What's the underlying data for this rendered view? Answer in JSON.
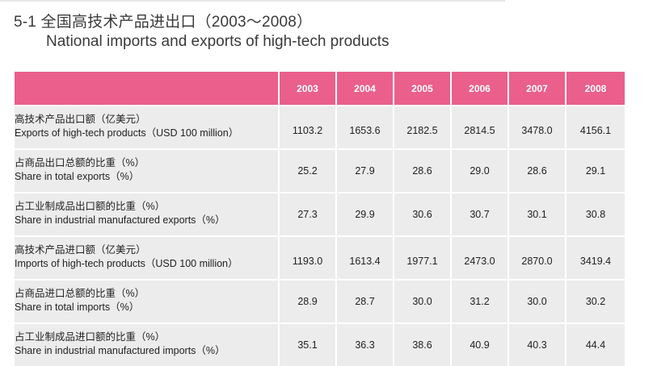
{
  "title": {
    "cn": "5-1 全国高技术产品进出口（2003～2008）",
    "en": "National imports and exports of high-tech products"
  },
  "table": {
    "years": [
      "2003",
      "2004",
      "2005",
      "2006",
      "2007",
      "2008"
    ],
    "rows": [
      {
        "cn": "高技术产品出口额（亿美元）",
        "en": "Exports of high-tech products（USD 100 million）",
        "values": [
          "1103.2",
          "1653.6",
          "2182.5",
          "2814.5",
          "3478.0",
          "4156.1"
        ]
      },
      {
        "cn": "占商品出口总额的比重（%）",
        "en": "Share in total exports（%）",
        "values": [
          "25.2",
          "27.9",
          "28.6",
          "29.0",
          "28.6",
          "29.1"
        ]
      },
      {
        "cn": "占工业制成品出口额的比重（%）",
        "en": "Share in industrial manufactured exports（%）",
        "values": [
          "27.3",
          "29.9",
          "30.6",
          "30.7",
          "30.1",
          "30.8"
        ]
      },
      {
        "cn": "高技术产品进口额（亿美元）",
        "en": "Imports of high-tech products（USD 100 million）",
        "values": [
          "1193.0",
          "1613.4",
          "1977.1",
          "2473.0",
          "2870.0",
          "3419.4"
        ]
      },
      {
        "cn": "占商品进口总额的比重（%）",
        "en": "Share in total imports（%）",
        "values": [
          "28.9",
          "28.7",
          "30.0",
          "31.2",
          "30.0",
          "30.2"
        ]
      },
      {
        "cn": "占工业制成品进口额的比重（%）",
        "en": "Share in industrial manufactured imports（%）",
        "values": [
          "35.1",
          "36.3",
          "38.6",
          "40.9",
          "40.3",
          "44.4"
        ]
      }
    ]
  },
  "colors": {
    "header_bg": "#ea5f8c",
    "header_text": "#ffffff",
    "cell_bg": "#ececec",
    "title_text": "#3a3a3a"
  }
}
